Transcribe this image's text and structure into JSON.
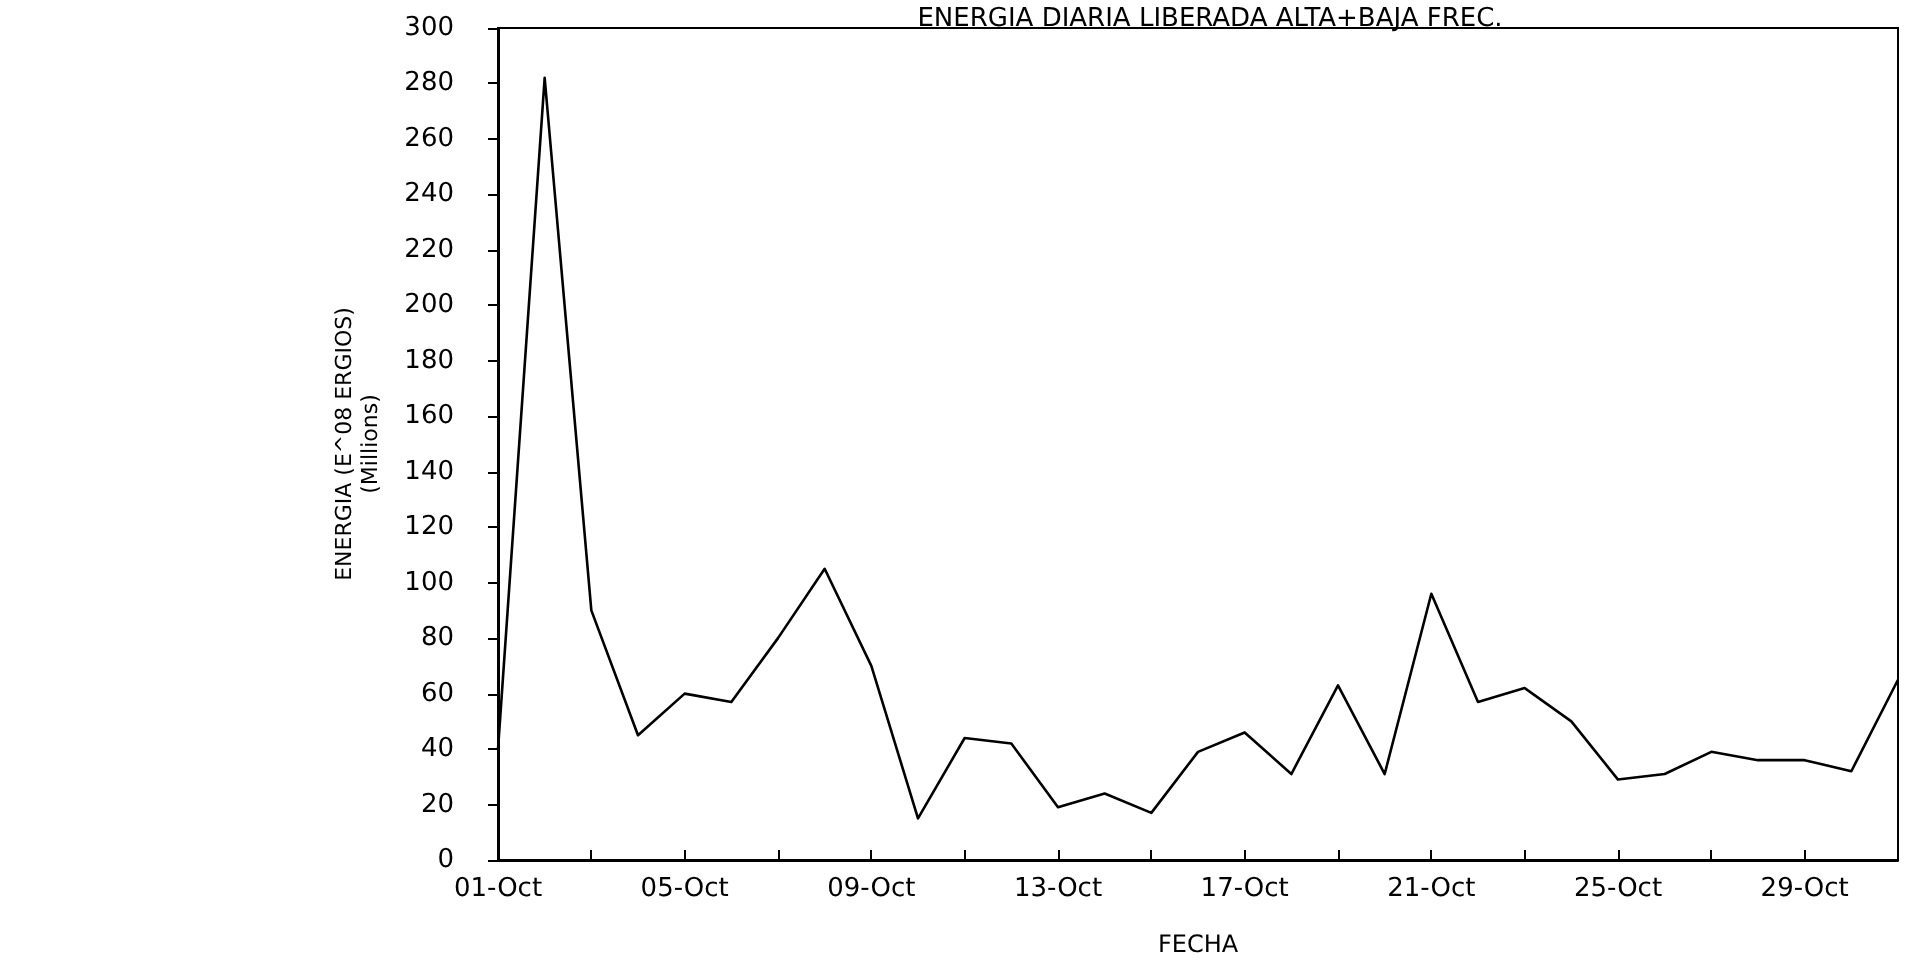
{
  "chart_data": {
    "type": "line",
    "title": "ENERGIA DIARIA LIBERADA ALTA+BAJA FREC.",
    "xlabel": "FECHA",
    "ylabel": "ENERGIA (E^08 ERGIOS)\n(Millions)",
    "x": [
      "--10-01",
      "--10-02",
      "--10-03",
      "--10-04",
      "--10-05",
      "--10-06",
      "--10-07",
      "--10-08",
      "--10-09",
      "--10-10",
      "--10-11",
      "--10-12",
      "--10-13",
      "--10-14",
      "--10-15",
      "--10-16",
      "--10-17",
      "--10-18",
      "--10-19",
      "--10-20",
      "--10-21",
      "--10-22",
      "--10-23",
      "--10-24",
      "--10-25",
      "--10-26",
      "--10-27",
      "--10-28",
      "--10-29",
      "--10-30",
      "--10-31"
    ],
    "series": [
      {
        "color": "#000000",
        "values": [
          40,
          282,
          90,
          45,
          60,
          57,
          80,
          105,
          70,
          15,
          44,
          42,
          19,
          24,
          17,
          39,
          46,
          31,
          63,
          31,
          96,
          57,
          62,
          50,
          29,
          31,
          39,
          36,
          36,
          32,
          65
        ]
      }
    ],
    "xlim": [
      "--10-01",
      "--10-31"
    ],
    "xticks": [
      {
        "value": "--10-01",
        "label": "01-Oct"
      },
      {
        "value": "--10-03",
        "label": null
      },
      {
        "value": "--10-05",
        "label": "05-Oct"
      },
      {
        "value": "--10-07",
        "label": null
      },
      {
        "value": "--10-09",
        "label": "09-Oct"
      },
      {
        "value": "--10-11",
        "label": null
      },
      {
        "value": "--10-13",
        "label": "13-Oct"
      },
      {
        "value": "--10-15",
        "label": null
      },
      {
        "value": "--10-17",
        "label": "17-Oct"
      },
      {
        "value": "--10-19",
        "label": null
      },
      {
        "value": "--10-21",
        "label": "21-Oct"
      },
      {
        "value": "--10-23",
        "label": null
      },
      {
        "value": "--10-25",
        "label": "25-Oct"
      },
      {
        "value": "--10-27",
        "label": null
      },
      {
        "value": "--10-29",
        "label": "29-Oct"
      }
    ],
    "ylim": [
      0,
      300
    ],
    "yticks": [
      0,
      20,
      40,
      60,
      80,
      100,
      120,
      140,
      160,
      180,
      200,
      220,
      240,
      260,
      280,
      300
    ],
    "grid": false,
    "marker": "none",
    "line_style": "solid"
  }
}
